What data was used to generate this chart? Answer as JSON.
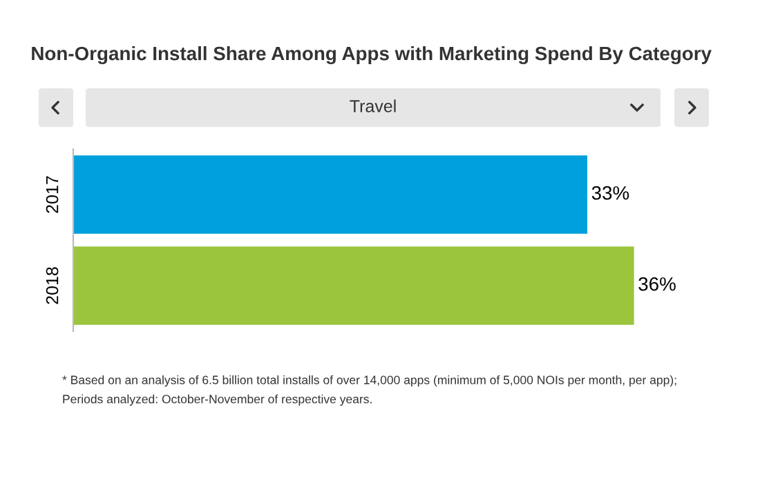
{
  "chart_data": {
    "type": "bar",
    "orientation": "horizontal",
    "title": "Non-Organic Install Share Among Apps with Marketing Spend By Category",
    "subtitle": "Travel",
    "categories": [
      "2017",
      "2018"
    ],
    "values": [
      33,
      36
    ],
    "colors": [
      "#00a0dc",
      "#9bc53d"
    ],
    "value_labels": [
      "33%",
      "36%"
    ],
    "grid": false,
    "legend": false,
    "annotations": [
      "* Based on an analysis of 6.5 billion total installs of over 14,000 apps (minimum of 5,000 NOIs per month, per app);\nPeriods analyzed: October-November of respective years."
    ]
  }
}
